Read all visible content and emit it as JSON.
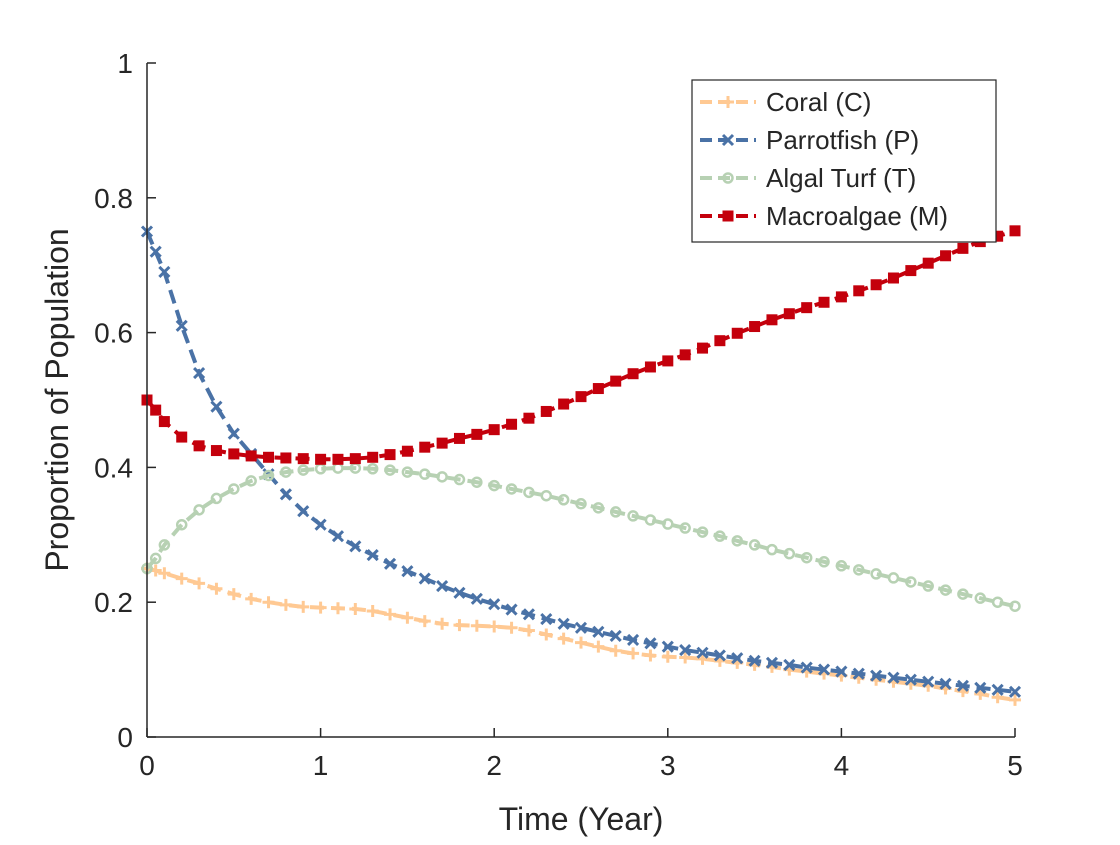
{
  "chart_data": {
    "type": "line",
    "xlabel": "Time (Year)",
    "ylabel": "Proportion of Population",
    "xlim": [
      0,
      5
    ],
    "ylim": [
      0,
      1
    ],
    "xticks": [
      "0",
      "1",
      "2",
      "3",
      "4",
      "5"
    ],
    "yticks": [
      "0",
      "0.2",
      "0.4",
      "0.6",
      "0.8",
      "1"
    ],
    "grid": false,
    "legend_position": "top-right",
    "series": [
      {
        "name": "Coral (C)",
        "color": "#FFC993",
        "marker": "plus",
        "x": [
          0,
          0.05,
          0.1,
          0.2,
          0.3,
          0.4,
          0.5,
          0.6,
          0.7,
          0.8,
          0.9,
          1.0,
          1.1,
          1.2,
          1.3,
          1.4,
          1.5,
          1.6,
          1.7,
          1.8,
          1.9,
          2.0,
          2.1,
          2.2,
          2.3,
          2.4,
          2.5,
          2.6,
          2.7,
          2.8,
          2.9,
          3.0,
          3.1,
          3.2,
          3.3,
          3.4,
          3.5,
          3.6,
          3.7,
          3.8,
          3.9,
          4.0,
          4.1,
          4.2,
          4.3,
          4.4,
          4.5,
          4.6,
          4.7,
          4.8,
          4.9,
          5.0
        ],
        "y": [
          0.25,
          0.247,
          0.243,
          0.235,
          0.228,
          0.22,
          0.212,
          0.205,
          0.2,
          0.196,
          0.193,
          0.192,
          0.191,
          0.19,
          0.187,
          0.182,
          0.177,
          0.172,
          0.168,
          0.166,
          0.165,
          0.164,
          0.162,
          0.158,
          0.152,
          0.146,
          0.14,
          0.134,
          0.128,
          0.124,
          0.121,
          0.119,
          0.118,
          0.116,
          0.113,
          0.11,
          0.107,
          0.104,
          0.1,
          0.097,
          0.094,
          0.091,
          0.088,
          0.085,
          0.082,
          0.079,
          0.076,
          0.072,
          0.068,
          0.064,
          0.059,
          0.055
        ]
      },
      {
        "name": "Parrotfish (P)",
        "color": "#4A72A6",
        "marker": "x",
        "x": [
          0,
          0.05,
          0.1,
          0.2,
          0.3,
          0.4,
          0.5,
          0.6,
          0.7,
          0.8,
          0.9,
          1.0,
          1.1,
          1.2,
          1.3,
          1.4,
          1.5,
          1.6,
          1.7,
          1.8,
          1.9,
          2.0,
          2.1,
          2.2,
          2.3,
          2.4,
          2.5,
          2.6,
          2.7,
          2.8,
          2.9,
          3.0,
          3.1,
          3.2,
          3.3,
          3.4,
          3.5,
          3.6,
          3.7,
          3.8,
          3.9,
          4.0,
          4.1,
          4.2,
          4.3,
          4.4,
          4.5,
          4.6,
          4.7,
          4.8,
          4.9,
          5.0
        ],
        "y": [
          0.75,
          0.72,
          0.69,
          0.61,
          0.54,
          0.49,
          0.45,
          0.42,
          0.39,
          0.36,
          0.335,
          0.315,
          0.298,
          0.283,
          0.27,
          0.257,
          0.246,
          0.235,
          0.224,
          0.214,
          0.205,
          0.197,
          0.189,
          0.182,
          0.175,
          0.168,
          0.162,
          0.156,
          0.15,
          0.144,
          0.139,
          0.134,
          0.129,
          0.125,
          0.121,
          0.117,
          0.113,
          0.11,
          0.107,
          0.103,
          0.1,
          0.097,
          0.094,
          0.091,
          0.088,
          0.085,
          0.082,
          0.079,
          0.076,
          0.073,
          0.07,
          0.067
        ]
      },
      {
        "name": "Algal Turf (T)",
        "color": "#B7D1B3",
        "marker": "circle",
        "x": [
          0,
          0.05,
          0.1,
          0.2,
          0.3,
          0.4,
          0.5,
          0.6,
          0.7,
          0.8,
          0.9,
          1.0,
          1.1,
          1.2,
          1.3,
          1.4,
          1.5,
          1.6,
          1.7,
          1.8,
          1.9,
          2.0,
          2.1,
          2.2,
          2.3,
          2.4,
          2.5,
          2.6,
          2.7,
          2.8,
          2.9,
          3.0,
          3.1,
          3.2,
          3.3,
          3.4,
          3.5,
          3.6,
          3.7,
          3.8,
          3.9,
          4.0,
          4.1,
          4.2,
          4.3,
          4.4,
          4.5,
          4.6,
          4.7,
          4.8,
          4.9,
          5.0
        ],
        "y": [
          0.25,
          0.265,
          0.285,
          0.315,
          0.337,
          0.354,
          0.368,
          0.38,
          0.388,
          0.393,
          0.396,
          0.398,
          0.399,
          0.399,
          0.398,
          0.396,
          0.393,
          0.39,
          0.386,
          0.382,
          0.378,
          0.373,
          0.368,
          0.363,
          0.358,
          0.352,
          0.346,
          0.34,
          0.334,
          0.328,
          0.322,
          0.316,
          0.31,
          0.304,
          0.298,
          0.291,
          0.285,
          0.278,
          0.272,
          0.266,
          0.26,
          0.254,
          0.248,
          0.242,
          0.236,
          0.23,
          0.224,
          0.218,
          0.212,
          0.206,
          0.2,
          0.194
        ]
      },
      {
        "name": "Macroalgae (M)",
        "color": "#C4000C",
        "marker": "square",
        "x": [
          0,
          0.05,
          0.1,
          0.2,
          0.3,
          0.4,
          0.5,
          0.6,
          0.7,
          0.8,
          0.9,
          1.0,
          1.1,
          1.2,
          1.3,
          1.4,
          1.5,
          1.6,
          1.7,
          1.8,
          1.9,
          2.0,
          2.1,
          2.2,
          2.3,
          2.4,
          2.5,
          2.6,
          2.7,
          2.8,
          2.9,
          3.0,
          3.1,
          3.2,
          3.3,
          3.4,
          3.5,
          3.6,
          3.7,
          3.8,
          3.9,
          4.0,
          4.1,
          4.2,
          4.3,
          4.4,
          4.5,
          4.6,
          4.7,
          4.8,
          4.9,
          5.0
        ],
        "y": [
          0.5,
          0.485,
          0.468,
          0.445,
          0.432,
          0.425,
          0.42,
          0.417,
          0.415,
          0.414,
          0.413,
          0.412,
          0.412,
          0.413,
          0.415,
          0.419,
          0.424,
          0.43,
          0.436,
          0.443,
          0.449,
          0.456,
          0.464,
          0.473,
          0.483,
          0.494,
          0.505,
          0.517,
          0.528,
          0.539,
          0.549,
          0.558,
          0.567,
          0.577,
          0.588,
          0.599,
          0.609,
          0.619,
          0.628,
          0.637,
          0.645,
          0.653,
          0.662,
          0.671,
          0.681,
          0.692,
          0.703,
          0.714,
          0.725,
          0.735,
          0.743,
          0.751
        ]
      }
    ]
  }
}
